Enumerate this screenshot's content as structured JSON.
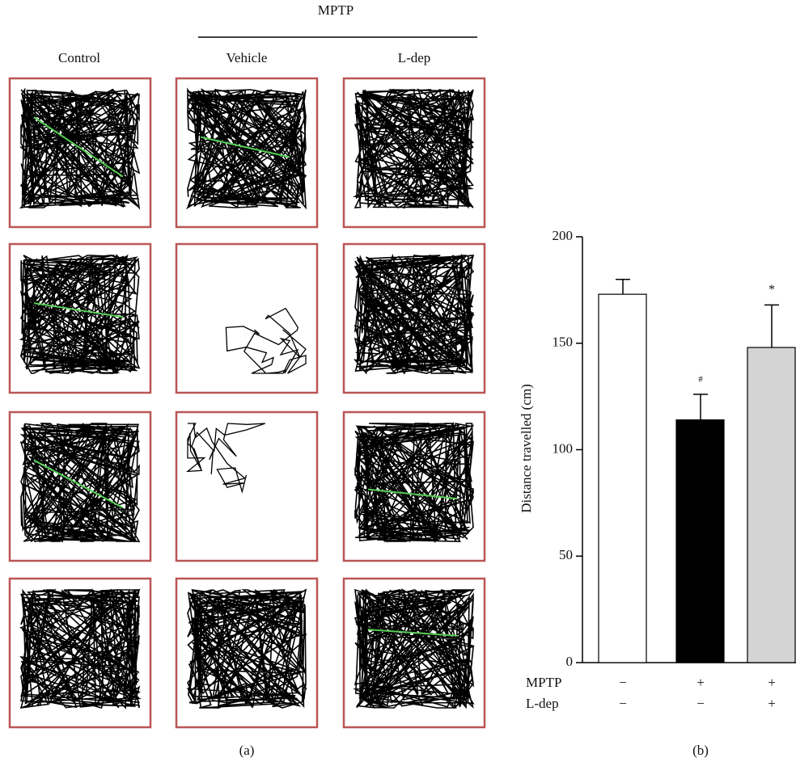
{
  "panel_a": {
    "group_label": "MPTP",
    "columns": [
      "Control",
      "Vehicle",
      "L-dep"
    ],
    "label": "(a)"
  },
  "chart_data": {
    "type": "bar",
    "categories": [
      null,
      null,
      null
    ],
    "values": [
      173,
      114,
      148
    ],
    "errors": [
      7,
      12,
      20
    ],
    "colors": [
      "#ffffff",
      "#000000",
      "#d4d4d4"
    ],
    "annotations": [
      null,
      "#",
      "*"
    ],
    "y_label": "Distance travelled (cm)",
    "ylim": [
      0,
      200
    ],
    "yticks": [
      0,
      50,
      100,
      150,
      200
    ],
    "conditions": [
      {
        "name": "MPTP",
        "values": [
          "−",
          "+",
          "+"
        ]
      },
      {
        "name": "L-dep",
        "values": [
          "−",
          "−",
          "+"
        ]
      }
    ],
    "label": "(b)"
  }
}
